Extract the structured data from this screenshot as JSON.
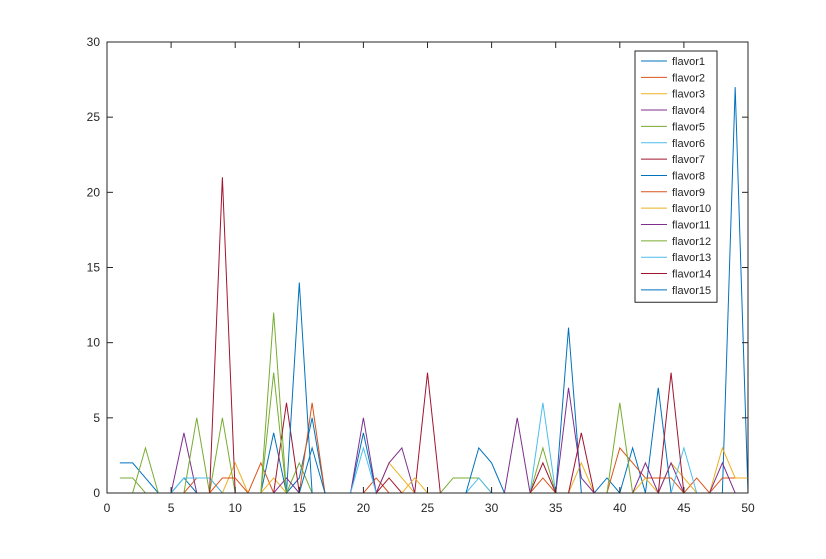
{
  "chart_data": {
    "type": "line",
    "title": "",
    "xlabel": "",
    "ylabel": "",
    "xlim": [
      0,
      50
    ],
    "ylim": [
      0,
      30
    ],
    "xticks": [
      0,
      5,
      10,
      15,
      20,
      25,
      30,
      35,
      40,
      45,
      50
    ],
    "yticks": [
      0,
      5,
      10,
      15,
      20,
      25,
      30
    ],
    "grid": false,
    "legend_position": "top-right",
    "x": [
      1,
      2,
      3,
      4,
      5,
      6,
      7,
      8,
      9,
      10,
      11,
      12,
      13,
      14,
      15,
      16,
      17,
      18,
      19,
      20,
      21,
      22,
      23,
      24,
      25,
      26,
      27,
      28,
      29,
      30,
      31,
      32,
      33,
      34,
      35,
      36,
      37,
      38,
      39,
      40,
      41,
      42,
      43,
      44,
      45,
      46,
      47,
      48,
      49,
      50
    ],
    "series": [
      {
        "name": "flavor1",
        "color": "#0072BD",
        "values": [
          2,
          2,
          1,
          0,
          0,
          1,
          0,
          0,
          0,
          0,
          0,
          0,
          4,
          0,
          1,
          5,
          0,
          0,
          0,
          4,
          0,
          0,
          0,
          0,
          0,
          0,
          0,
          0,
          0,
          0,
          0,
          0,
          0,
          0,
          0,
          11,
          0,
          0,
          1,
          0,
          3,
          0,
          7,
          0,
          0,
          0,
          0,
          0,
          27,
          0
        ]
      },
      {
        "name": "flavor2",
        "color": "#D95319",
        "values": [
          0,
          0,
          0,
          0,
          0,
          0,
          1,
          1,
          0,
          0,
          0,
          2,
          0,
          0,
          0,
          6,
          0,
          0,
          0,
          0,
          1,
          0,
          0,
          0,
          0,
          0,
          0,
          0,
          0,
          0,
          0,
          0,
          0,
          1,
          0,
          0,
          0,
          0,
          0,
          3,
          2,
          1,
          1,
          1,
          0,
          1,
          0,
          1,
          1,
          1
        ]
      },
      {
        "name": "flavor3",
        "color": "#EDB120",
        "values": [
          0,
          0,
          0,
          0,
          0,
          0,
          0,
          0,
          0,
          2,
          0,
          0,
          1,
          0,
          0,
          0,
          0,
          0,
          0,
          0,
          0,
          2,
          1,
          0,
          0,
          0,
          0,
          0,
          0,
          0,
          0,
          0,
          0,
          0,
          0,
          0,
          2,
          0,
          0,
          0,
          0,
          1,
          0,
          2,
          1,
          0,
          0,
          3,
          1,
          1
        ]
      },
      {
        "name": "flavor4",
        "color": "#7E2F8E",
        "values": [
          0,
          0,
          0,
          0,
          0,
          4,
          0,
          0,
          0,
          0,
          0,
          0,
          0,
          0,
          0,
          0,
          0,
          0,
          0,
          5,
          0,
          2,
          3,
          0,
          0,
          0,
          0,
          0,
          0,
          0,
          0,
          5,
          0,
          0,
          0,
          7,
          1,
          0,
          0,
          0,
          0,
          2,
          0,
          2,
          0,
          0,
          0,
          2,
          0,
          0
        ]
      },
      {
        "name": "flavor5",
        "color": "#77AC30",
        "values": [
          1,
          1,
          0,
          0,
          0,
          0,
          5,
          0,
          5,
          0,
          0,
          0,
          12,
          0,
          2,
          0,
          0,
          0,
          0,
          0,
          0,
          0,
          0,
          0,
          0,
          0,
          1,
          1,
          1,
          0,
          0,
          0,
          0,
          3,
          0,
          0,
          0,
          0,
          0,
          6,
          0,
          0,
          0,
          0,
          0,
          0,
          0,
          0,
          0,
          0
        ]
      },
      {
        "name": "flavor6",
        "color": "#4DBEEE",
        "values": [
          0,
          0,
          0,
          0,
          0,
          1,
          1,
          1,
          0,
          0,
          0,
          0,
          0,
          0,
          0,
          0,
          0,
          0,
          0,
          0,
          0,
          0,
          0,
          0,
          0,
          0,
          0,
          0,
          1,
          0,
          0,
          0,
          0,
          6,
          0,
          0,
          0,
          0,
          0,
          0,
          0,
          0,
          0,
          0,
          3,
          0,
          0,
          0,
          0,
          0
        ]
      },
      {
        "name": "flavor7",
        "color": "#A2142F",
        "values": [
          0,
          0,
          0,
          0,
          0,
          0,
          0,
          0,
          21,
          0,
          0,
          0,
          0,
          6,
          0,
          0,
          0,
          0,
          0,
          0,
          0,
          0,
          0,
          0,
          8,
          0,
          0,
          0,
          0,
          0,
          0,
          0,
          0,
          0,
          0,
          0,
          4,
          0,
          0,
          0,
          0,
          0,
          0,
          8,
          0,
          0,
          0,
          0,
          0,
          0
        ]
      },
      {
        "name": "flavor8",
        "color": "#0072BD",
        "values": [
          0,
          0,
          0,
          0,
          0,
          0,
          0,
          0,
          0,
          0,
          0,
          0,
          0,
          0,
          14,
          0,
          0,
          0,
          0,
          0,
          0,
          0,
          0,
          0,
          0,
          0,
          0,
          0,
          3,
          2,
          0,
          0,
          0,
          0,
          0,
          0,
          0,
          0,
          0,
          0,
          0,
          0,
          0,
          0,
          0,
          0,
          0,
          0,
          0,
          0
        ]
      },
      {
        "name": "flavor9",
        "color": "#D95319",
        "values": [
          0,
          0,
          0,
          0,
          0,
          0,
          0,
          0,
          1,
          1,
          0,
          0,
          0,
          0,
          0,
          0,
          0,
          0,
          0,
          0,
          0,
          0,
          0,
          0,
          0,
          0,
          0,
          0,
          0,
          0,
          0,
          0,
          0,
          0,
          0,
          0,
          0,
          0,
          0,
          0,
          0,
          0,
          0,
          0,
          0,
          0,
          0,
          0,
          0,
          0
        ]
      },
      {
        "name": "flavor10",
        "color": "#EDB120",
        "values": [
          0,
          0,
          0,
          0,
          0,
          0,
          0,
          0,
          0,
          0,
          0,
          0,
          0,
          0,
          0,
          0,
          0,
          0,
          0,
          0,
          0,
          0,
          0,
          1,
          0,
          0,
          0,
          0,
          0,
          0,
          0,
          0,
          0,
          0,
          0,
          0,
          0,
          0,
          0,
          0,
          0,
          0,
          0,
          0,
          0,
          0,
          0,
          0,
          0,
          0
        ]
      },
      {
        "name": "flavor11",
        "color": "#7E2F8E",
        "values": [
          0,
          0,
          0,
          0,
          0,
          0,
          0,
          0,
          0,
          0,
          0,
          0,
          0,
          1,
          0,
          0,
          0,
          0,
          0,
          0,
          0,
          0,
          0,
          0,
          0,
          0,
          0,
          0,
          0,
          0,
          0,
          0,
          0,
          0,
          0,
          0,
          0,
          0,
          0,
          0,
          0,
          0,
          0,
          0,
          0,
          0,
          0,
          0,
          0,
          0
        ]
      },
      {
        "name": "flavor12",
        "color": "#77AC30",
        "values": [
          0,
          0,
          3,
          0,
          0,
          0,
          0,
          0,
          0,
          0,
          0,
          0,
          8,
          0,
          0,
          0,
          0,
          0,
          0,
          0,
          0,
          0,
          0,
          0,
          0,
          0,
          0,
          0,
          0,
          0,
          0,
          0,
          0,
          0,
          0,
          0,
          0,
          0,
          0,
          0,
          0,
          0,
          0,
          0,
          0,
          0,
          0,
          0,
          0,
          0
        ]
      },
      {
        "name": "flavor13",
        "color": "#4DBEEE",
        "values": [
          0,
          0,
          0,
          0,
          0,
          0,
          0,
          0,
          0,
          0,
          0,
          0,
          0,
          0,
          0,
          0,
          0,
          0,
          0,
          3,
          0,
          0,
          0,
          0,
          0,
          0,
          0,
          0,
          0,
          0,
          0,
          0,
          0,
          0,
          0,
          0,
          0,
          0,
          0,
          0,
          0,
          0,
          0,
          0,
          0,
          0,
          0,
          0,
          0,
          0
        ]
      },
      {
        "name": "flavor14",
        "color": "#A2142F",
        "values": [
          0,
          0,
          0,
          0,
          0,
          0,
          0,
          0,
          0,
          0,
          0,
          0,
          0,
          0,
          0,
          0,
          0,
          0,
          0,
          0,
          0,
          1,
          0,
          0,
          0,
          0,
          0,
          0,
          0,
          0,
          0,
          0,
          0,
          2,
          0,
          0,
          0,
          0,
          0,
          0,
          0,
          0,
          0,
          0,
          0,
          0,
          0,
          0,
          0,
          0
        ]
      },
      {
        "name": "flavor15",
        "color": "#0072BD",
        "values": [
          0,
          0,
          0,
          0,
          0,
          0,
          0,
          0,
          0,
          0,
          0,
          0,
          0,
          0,
          0,
          3,
          0,
          0,
          0,
          0,
          0,
          0,
          0,
          0,
          0,
          0,
          0,
          0,
          0,
          0,
          0,
          0,
          0,
          0,
          0,
          0,
          0,
          0,
          0,
          0,
          0,
          0,
          0,
          0,
          0,
          0,
          0,
          0,
          0,
          0
        ]
      }
    ]
  }
}
